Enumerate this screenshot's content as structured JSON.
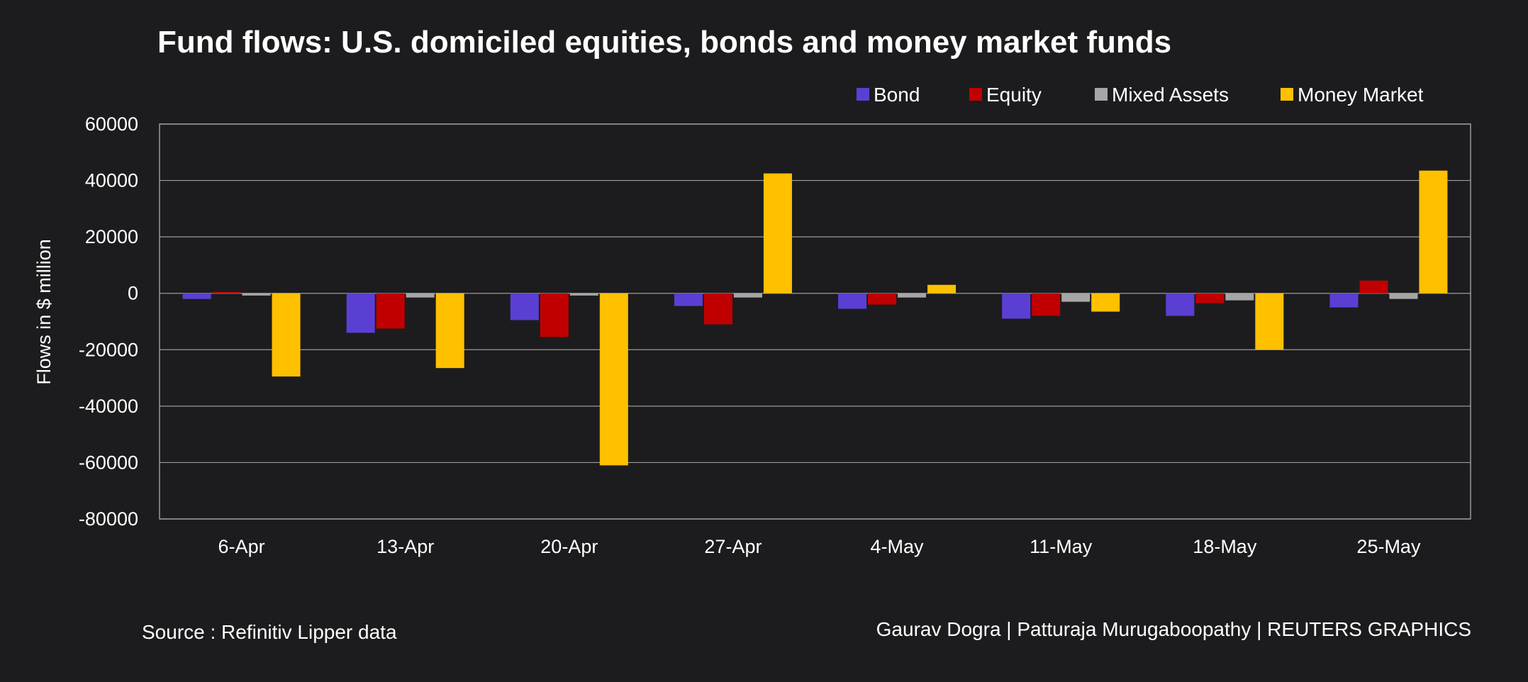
{
  "colors": {
    "background": "#1c1c1e",
    "grid": "#9a9a9a",
    "text": "#ffffff",
    "bond": "#5b3fd3",
    "equity": "#c00000",
    "mixed": "#a6a6a6",
    "money": "#ffc000"
  },
  "chart_data": {
    "type": "bar",
    "title": "Fund flows: U.S. domiciled equities, bonds and money market funds",
    "xlabel": "",
    "ylabel": "Flows in $ million",
    "ylim": [
      -80000,
      60000
    ],
    "yticks": [
      60000,
      40000,
      20000,
      0,
      -20000,
      -40000,
      -60000,
      -80000
    ],
    "ytick_labels": [
      "60000",
      "40000",
      "20000",
      "0",
      "-20000",
      "-40000",
      "-60000",
      "-80000"
    ],
    "grid": true,
    "legend_position": "top-right",
    "categories": [
      "6-Apr",
      "13-Apr",
      "20-Apr",
      "27-Apr",
      "4-May",
      "11-May",
      "18-May",
      "25-May"
    ],
    "series": [
      {
        "name": "Bond",
        "color": "#5b3fd3",
        "values": [
          -2000,
          -14000,
          -9500,
          -4500,
          -5500,
          -9000,
          -8000,
          -5000
        ]
      },
      {
        "name": "Equity",
        "color": "#c00000",
        "values": [
          500,
          -12500,
          -15500,
          -11000,
          -4000,
          -8000,
          -3500,
          4500
        ]
      },
      {
        "name": "Mixed Assets",
        "color": "#a6a6a6",
        "values": [
          -800,
          -1500,
          -800,
          -1500,
          -1500,
          -3000,
          -2500,
          -2000
        ]
      },
      {
        "name": "Money Market",
        "color": "#ffc000",
        "values": [
          -29500,
          -26500,
          -61000,
          42500,
          3000,
          -6500,
          -20000,
          43500
        ]
      }
    ]
  },
  "footer": {
    "source": "Source : Refinitiv Lipper data",
    "credit": "Gaurav Dogra | Patturaja Murugaboopathy | REUTERS GRAPHICS"
  }
}
